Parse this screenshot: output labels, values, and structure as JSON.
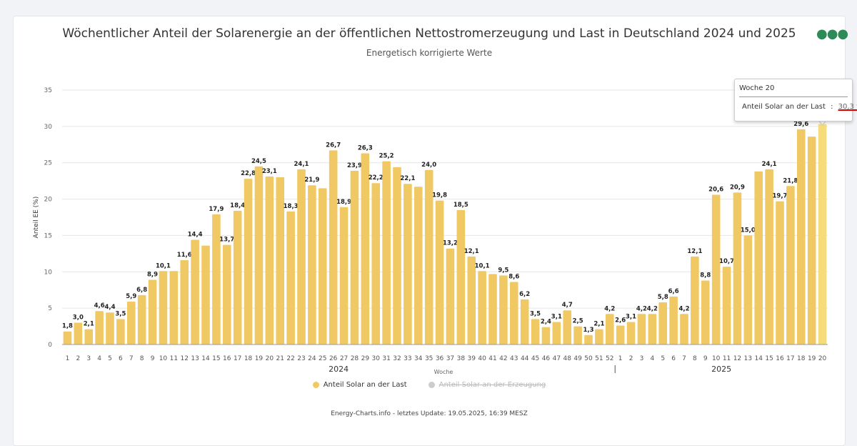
{
  "chart_data": {
    "type": "bar",
    "title": "Wöchentlicher Anteil der Solarenergie an der öffentlichen Nettostromerzeugung und Last in Deutschland 2024 und 2025",
    "subtitle": "Energetisch korrigierte Werte",
    "xlabel": "Woche",
    "ylabel": "Anteil EE (%)",
    "ylim": [
      0,
      35
    ],
    "yticks": [
      "0",
      "5",
      "10",
      "15",
      "20",
      "25",
      "30",
      "35"
    ],
    "grid": true,
    "legend_position": "bottom",
    "year_groups": [
      {
        "label": "2024",
        "weeks": 52
      },
      {
        "label": "2025",
        "weeks": 20
      }
    ],
    "categories": [
      "1",
      "2",
      "3",
      "4",
      "5",
      "6",
      "7",
      "8",
      "9",
      "10",
      "11",
      "12",
      "13",
      "14",
      "15",
      "16",
      "17",
      "18",
      "19",
      "20",
      "21",
      "22",
      "23",
      "24",
      "25",
      "26",
      "27",
      "28",
      "29",
      "30",
      "31",
      "32",
      "33",
      "34",
      "35",
      "36",
      "37",
      "38",
      "39",
      "40",
      "41",
      "42",
      "43",
      "44",
      "45",
      "46",
      "47",
      "48",
      "49",
      "50",
      "51",
      "52",
      "1",
      "2",
      "3",
      "4",
      "5",
      "6",
      "7",
      "8",
      "9",
      "10",
      "11",
      "12",
      "13",
      "14",
      "15",
      "16",
      "17",
      "18",
      "19",
      "20"
    ],
    "series": [
      {
        "name": "Anteil Solar an der Last",
        "color": "#f0c965",
        "visible": true,
        "values": [
          1.8,
          3.0,
          2.1,
          4.6,
          4.4,
          3.5,
          5.9,
          6.8,
          8.9,
          10.1,
          10.1,
          11.6,
          14.4,
          13.6,
          17.9,
          13.7,
          18.4,
          22.8,
          24.5,
          23.1,
          23.0,
          18.3,
          24.1,
          21.9,
          21.5,
          26.7,
          18.9,
          23.9,
          26.3,
          22.2,
          25.2,
          24.4,
          22.1,
          21.7,
          24.0,
          19.8,
          13.2,
          18.5,
          12.1,
          10.1,
          9.7,
          9.5,
          8.6,
          6.2,
          3.5,
          2.4,
          3.1,
          4.7,
          2.5,
          1.3,
          2.1,
          4.2,
          2.6,
          3.1,
          4.2,
          4.2,
          5.8,
          6.6,
          4.2,
          12.1,
          8.8,
          20.6,
          10.7,
          20.9,
          15.0,
          23.8,
          24.1,
          19.7,
          21.8,
          29.6,
          28.6,
          30.3
        ],
        "data_labels": [
          "1,8",
          "3,0",
          "2,1",
          "4,6",
          "4,4",
          "3,5",
          "5,9",
          "6,8",
          "8,9",
          "10,1",
          null,
          "11,6",
          "14,4",
          null,
          "17,9",
          "13,7",
          "18,4",
          "22,8",
          "24,5",
          "23,1",
          null,
          "18,3",
          "24,1",
          "21,9",
          null,
          "26,7",
          "18,9",
          "23,9",
          "26,3",
          "22,2",
          "25,2",
          null,
          "22,1",
          null,
          "24,0",
          "19,8",
          "13,2",
          "18,5",
          "12,1",
          "10,1",
          null,
          "9,5",
          "8,6",
          "6,2",
          "3,5",
          "2,4",
          "3,1",
          "4,7",
          "2,5",
          "1,3",
          "2,1",
          "4,2",
          "2,6",
          "3,1",
          "4,2",
          "4,2",
          "5,8",
          "6,6",
          "4,2",
          "12,1",
          "8,8",
          "20,6",
          "10,7",
          "20,9",
          "15,0",
          null,
          "24,1",
          "19,7",
          "21,8",
          "29,6",
          null,
          null
        ]
      },
      {
        "name": "Anteil Solar an der Erzeugung",
        "color": "#cccccc",
        "visible": false
      }
    ]
  },
  "tooltip": {
    "header": "Woche 20",
    "series": "Anteil Solar an der Last",
    "value": "30,3 %"
  },
  "footer": "Energy-Charts.info - letztes Update: 19.05.2025, 16:39 MESZ",
  "menu_icon": "ellipsis-icon",
  "colors": {
    "highlight": "#f5dc7a",
    "menu": "#2e8b57"
  }
}
